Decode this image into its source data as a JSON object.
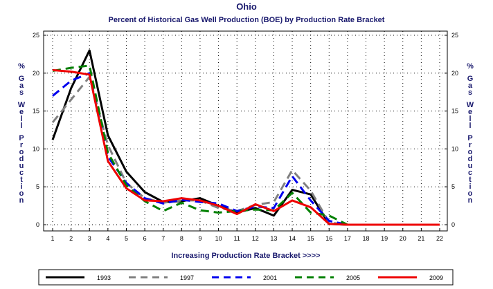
{
  "chart_data": {
    "type": "line",
    "title": "Ohio",
    "subtitle": "Percent of Historical Gas Well Production (BOE) by Production Rate Bracket",
    "xlabel": "Increasing Production Rate Bracket >>>>",
    "ylabel": "% Gas Well Production",
    "x": [
      1,
      2,
      3,
      4,
      5,
      6,
      7,
      8,
      9,
      10,
      11,
      12,
      13,
      14,
      15,
      16,
      17,
      18,
      19,
      20,
      21,
      22
    ],
    "xlim": [
      1,
      22
    ],
    "ylim": [
      0,
      25
    ],
    "yticks": [
      0,
      5,
      10,
      15,
      20,
      25
    ],
    "grid": "dotted",
    "legend_position": "bottom",
    "series": [
      {
        "name": "1993",
        "color": "#000000",
        "dash": "solid",
        "values": [
          11.2,
          18.0,
          23.0,
          11.8,
          7.0,
          4.3,
          3.0,
          3.1,
          3.5,
          2.5,
          1.6,
          2.2,
          1.2,
          4.6,
          4.0,
          0.1,
          0.0,
          0.0,
          0.0,
          0.0,
          0.0,
          0.0
        ]
      },
      {
        "name": "1997",
        "color": "#808080",
        "dash": "dashed",
        "values": [
          13.5,
          16.5,
          19.5,
          10.5,
          5.5,
          3.5,
          2.9,
          3.2,
          3.2,
          2.2,
          1.8,
          2.6,
          3.0,
          7.2,
          4.5,
          0.3,
          0.0,
          0.0,
          0.0,
          0.0,
          0.0,
          0.0
        ]
      },
      {
        "name": "2001",
        "color": "#0000ee",
        "dash": "dashed",
        "values": [
          17.0,
          19.0,
          20.0,
          9.0,
          5.5,
          3.5,
          2.8,
          3.3,
          3.0,
          2.8,
          1.8,
          2.4,
          2.2,
          6.4,
          3.2,
          0.5,
          0.0,
          0.0,
          0.0,
          0.0,
          0.0,
          0.0
        ]
      },
      {
        "name": "2005",
        "color": "#008000",
        "dash": "dashed",
        "values": [
          20.3,
          20.7,
          21.0,
          9.5,
          5.2,
          3.1,
          1.8,
          2.9,
          1.9,
          1.6,
          1.8,
          2.0,
          1.9,
          4.2,
          1.6,
          1.2,
          0.0,
          0.0,
          0.0,
          0.0,
          0.0,
          0.0
        ]
      },
      {
        "name": "2009",
        "color": "#ee0000",
        "dash": "solid",
        "values": [
          20.4,
          20.2,
          19.8,
          8.4,
          4.8,
          3.2,
          3.1,
          3.5,
          3.2,
          2.5,
          1.4,
          2.7,
          1.8,
          3.2,
          2.3,
          0.1,
          0.0,
          0.0,
          0.0,
          0.0,
          0.0,
          0.0
        ]
      }
    ]
  }
}
